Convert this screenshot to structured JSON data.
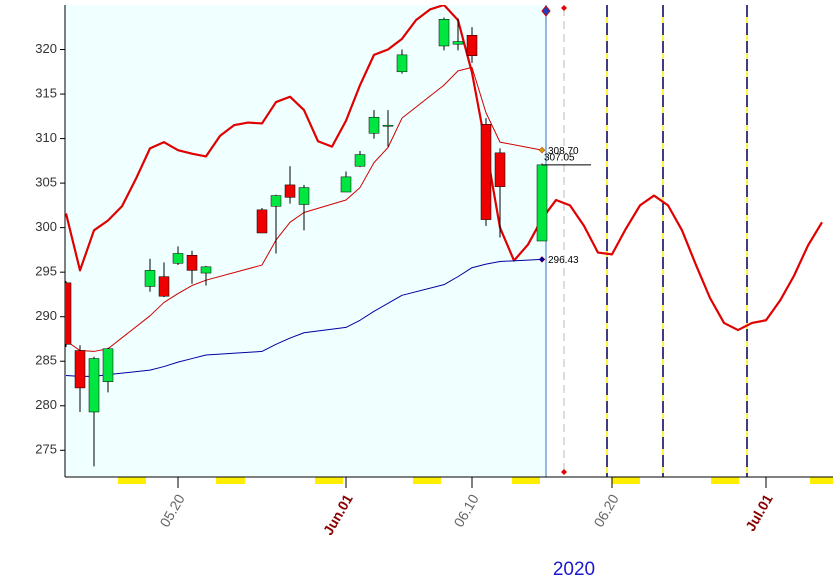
{
  "chart_data": {
    "type": "candlestick",
    "xlabel": "2020",
    "xlim": [
      "2020-05-12",
      "2020-07-06"
    ],
    "ylim": [
      272,
      325
    ],
    "yticks": [
      275,
      280,
      285,
      290,
      295,
      300,
      305,
      310,
      315,
      320
    ],
    "xticks": [
      {
        "value": "2020-05-20",
        "label": "05.20"
      },
      {
        "value": "2020-06-01",
        "label": "Jun.01"
      },
      {
        "value": "2020-06-10",
        "label": "06.10"
      },
      {
        "value": "2020-06-20",
        "label": "06.20"
      },
      {
        "value": "2020-07-01",
        "label": "Jul.01"
      }
    ],
    "xtick_colors": [
      "#666666",
      "#8b0000",
      "#666666",
      "#666666",
      "#8b0000"
    ],
    "up_color": "#00e640",
    "down_color": "#ee0000",
    "x": [
      "2020-05-12",
      "2020-05-13",
      "2020-05-14",
      "2020-05-15",
      "2020-05-18",
      "2020-05-19",
      "2020-05-20",
      "2020-05-21",
      "2020-05-22",
      "2020-05-26",
      "2020-05-27",
      "2020-05-28",
      "2020-05-29",
      "2020-06-01",
      "2020-06-02",
      "2020-06-03",
      "2020-06-04",
      "2020-06-05",
      "2020-06-08",
      "2020-06-09",
      "2020-06-10",
      "2020-06-11",
      "2020-06-12",
      "2020-06-15"
    ],
    "open": [
      293.8,
      286.2,
      279.3,
      282.7,
      293.4,
      294.5,
      296.0,
      296.9,
      294.9,
      302.0,
      302.4,
      304.8,
      302.6,
      304.0,
      306.9,
      310.6,
      311.4,
      317.5,
      320.4,
      320.6,
      321.6,
      311.6,
      308.4,
      298.5
    ],
    "high": [
      294.0,
      286.8,
      285.5,
      286.5,
      296.5,
      296.1,
      297.9,
      297.4,
      295.7,
      302.2,
      303.7,
      306.9,
      304.8,
      306.3,
      308.6,
      313.2,
      313.2,
      320.0,
      323.6,
      323.5,
      322.5,
      312.3,
      308.9,
      307.2
    ],
    "low": [
      286.6,
      279.3,
      273.2,
      281.5,
      292.8,
      292.2,
      295.8,
      293.7,
      293.5,
      299.4,
      297.1,
      302.7,
      299.7,
      304.0,
      306.8,
      310.0,
      309.1,
      317.3,
      319.9,
      319.9,
      318.5,
      300.2,
      298.9,
      298.5
    ],
    "close": [
      286.9,
      282.0,
      285.3,
      286.4,
      295.2,
      292.3,
      297.1,
      295.2,
      295.6,
      299.4,
      303.6,
      303.4,
      304.5,
      305.7,
      308.2,
      312.4,
      311.5,
      319.4,
      323.4,
      320.9,
      319.3,
      300.9,
      304.6,
      307.05
    ],
    "series": [
      {
        "color": "#e00000",
        "width": 2.2,
        "x": [
          "2020-05-12",
          "2020-05-13",
          "2020-05-14",
          "2020-05-15",
          "2020-05-16",
          "2020-05-17",
          "2020-05-18",
          "2020-05-19",
          "2020-05-20",
          "2020-05-21",
          "2020-05-22",
          "2020-05-23",
          "2020-05-24",
          "2020-05-25",
          "2020-05-26",
          "2020-05-27",
          "2020-05-28",
          "2020-05-29",
          "2020-05-30",
          "2020-05-31",
          "2020-06-01",
          "2020-06-02",
          "2020-06-03",
          "2020-06-04",
          "2020-06-05",
          "2020-06-06",
          "2020-06-07",
          "2020-06-08",
          "2020-06-09",
          "2020-06-10",
          "2020-06-11",
          "2020-06-12",
          "2020-06-13",
          "2020-06-14",
          "2020-06-15",
          "2020-06-16",
          "2020-06-17",
          "2020-06-18",
          "2020-06-19",
          "2020-06-20",
          "2020-06-21",
          "2020-06-22",
          "2020-06-23",
          "2020-06-24",
          "2020-06-25",
          "2020-06-26",
          "2020-06-27",
          "2020-06-28",
          "2020-06-29",
          "2020-06-30",
          "2020-07-01",
          "2020-07-02",
          "2020-07-03",
          "2020-07-04",
          "2020-07-05"
        ],
        "values": [
          301.6,
          295.2,
          299.7,
          300.8,
          302.4,
          305.5,
          308.9,
          309.6,
          308.7,
          308.3,
          308.0,
          310.3,
          311.5,
          311.8,
          311.7,
          314.1,
          314.7,
          313.2,
          309.7,
          309.1,
          312.0,
          316.0,
          319.4,
          320.0,
          321.2,
          323.3,
          324.5,
          325.0,
          323.3,
          317.4,
          309.0,
          300.0,
          296.3,
          298.1,
          301.0,
          303.1,
          302.5,
          300.2,
          297.2,
          297.0,
          299.9,
          302.5,
          303.6,
          302.5,
          299.7,
          295.8,
          292.1,
          289.3,
          288.5,
          289.3,
          289.6,
          291.8,
          294.6,
          298.0,
          300.6
        ]
      },
      {
        "color": "#d00000",
        "width": 1,
        "x": [
          "2020-05-12",
          "2020-05-13",
          "2020-05-14",
          "2020-05-15",
          "2020-05-18",
          "2020-05-19",
          "2020-05-20",
          "2020-05-21",
          "2020-05-22",
          "2020-05-26",
          "2020-05-27",
          "2020-05-28",
          "2020-05-29",
          "2020-06-01",
          "2020-06-02",
          "2020-06-03",
          "2020-06-04",
          "2020-06-05",
          "2020-06-08",
          "2020-06-09",
          "2020-06-10",
          "2020-06-11",
          "2020-06-12",
          "2020-06-15"
        ],
        "values": [
          287.3,
          286.2,
          286.1,
          286.4,
          290.1,
          291.6,
          292.6,
          293.5,
          294.1,
          295.8,
          298.6,
          300.6,
          301.7,
          303.1,
          304.5,
          307.3,
          309.0,
          312.3,
          316.0,
          317.6,
          318.0,
          312.9,
          309.6,
          308.7
        ]
      },
      {
        "color": "#0000a0",
        "width": 1,
        "x": [
          "2020-05-12",
          "2020-05-13",
          "2020-05-14",
          "2020-05-15",
          "2020-05-18",
          "2020-05-19",
          "2020-05-20",
          "2020-05-21",
          "2020-05-22",
          "2020-05-26",
          "2020-05-27",
          "2020-05-28",
          "2020-05-29",
          "2020-06-01",
          "2020-06-02",
          "2020-06-03",
          "2020-06-04",
          "2020-06-05",
          "2020-06-08",
          "2020-06-09",
          "2020-06-10",
          "2020-06-11",
          "2020-06-12",
          "2020-06-15"
        ],
        "values": [
          283.4,
          283.3,
          283.3,
          283.5,
          284.0,
          284.4,
          284.9,
          285.3,
          285.7,
          286.1,
          286.9,
          287.6,
          288.2,
          288.8,
          289.6,
          290.6,
          291.5,
          292.4,
          293.6,
          294.5,
          295.5,
          295.9,
          296.2,
          296.43
        ]
      }
    ],
    "annotations": [
      {
        "x": "2020-06-15",
        "value": 308.7,
        "label": "308.70",
        "color": "#c8a000",
        "style": "marker"
      },
      {
        "x": "2020-06-15",
        "value": 307.05,
        "label": "307.05",
        "color": "#000000",
        "style": "line"
      },
      {
        "x": "2020-06-15",
        "value": 296.43,
        "label": "296.43",
        "color": "#0000a0",
        "style": "marker"
      }
    ]
  }
}
